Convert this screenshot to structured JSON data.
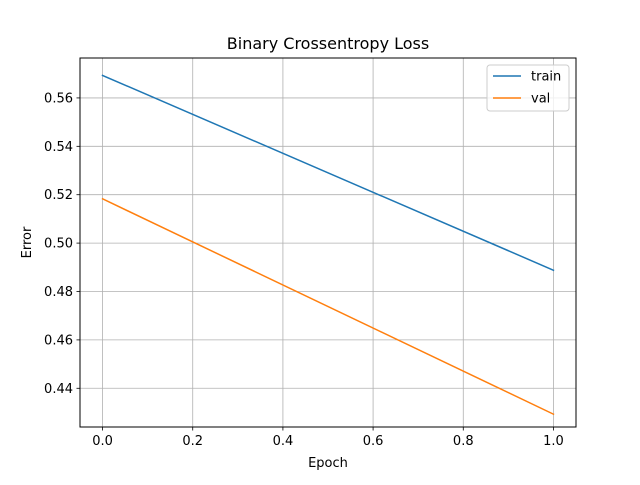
{
  "chart_data": {
    "type": "line",
    "title": "Binary Crossentropy Loss",
    "xlabel": "Epoch",
    "ylabel": "Error",
    "xlim": [
      -0.05,
      1.05
    ],
    "ylim": [
      0.424,
      0.5765
    ],
    "x_ticks": [
      0.0,
      0.2,
      0.4,
      0.6,
      0.8,
      1.0
    ],
    "x_tick_labels": [
      "0.0",
      "0.2",
      "0.4",
      "0.6",
      "0.8",
      "1.0"
    ],
    "y_ticks": [
      0.44,
      0.46,
      0.48,
      0.5,
      0.52,
      0.54,
      0.56
    ],
    "y_tick_labels": [
      "0.44",
      "0.46",
      "0.48",
      "0.50",
      "0.52",
      "0.54",
      "0.56"
    ],
    "grid": true,
    "legend_position": "top-right",
    "series": [
      {
        "name": "train",
        "color": "#1f77b4",
        "x": [
          0,
          1
        ],
        "values": [
          0.5693,
          0.4888
        ]
      },
      {
        "name": "val",
        "color": "#ff7f0e",
        "x": [
          0,
          1
        ],
        "values": [
          0.5183,
          0.4293
        ]
      }
    ]
  }
}
